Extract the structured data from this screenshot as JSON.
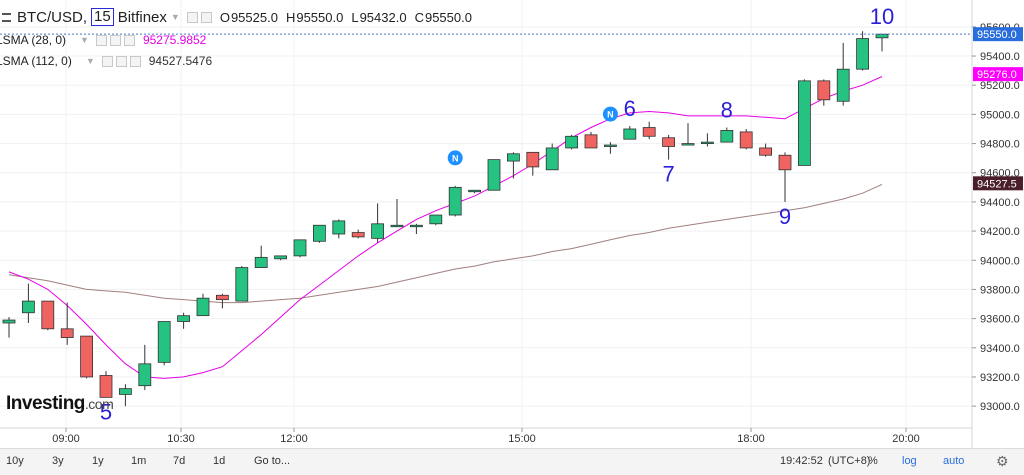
{
  "legend": {
    "symbol": "BTC/USD,",
    "interval": "15",
    "exchange": "Bitfinex",
    "ohlc": [
      {
        "key": "O",
        "value": "95525.0"
      },
      {
        "key": "H",
        "value": "95550.0"
      },
      {
        "key": "L",
        "value": "95432.0"
      },
      {
        "key": "C",
        "value": "95550.0"
      }
    ],
    "indicators": [
      {
        "name": "LSMA (28, 0)",
        "value": "95275.9852",
        "color": "#e600e6"
      },
      {
        "name": "LSMA (112, 0)",
        "value": "94527.5476",
        "color": "#333333"
      }
    ]
  },
  "logo": {
    "text": "Investing",
    "suffix": ".com"
  },
  "bottom_bar": {
    "ranges": [
      "10y",
      "3y",
      "1y",
      "1m",
      "7d",
      "1d"
    ],
    "goto": "Go to...",
    "clock": "19:42:52",
    "timezone": "(UTC+8)",
    "percent": "%",
    "log": "log",
    "auto": "auto"
  },
  "price_badges": {
    "last": "95550.0",
    "lsma28": "95276.0",
    "lsma112": "94527.5"
  },
  "colors": {
    "up": "#26c281",
    "down": "#ef6461",
    "lsma28": "#e600e6",
    "lsma112": "#a07f7f",
    "annotation": "#2a1fd6",
    "news": "#1e90ff"
  },
  "chart_data": {
    "type": "candlestick",
    "ylim": [
      92850,
      95750
    ],
    "y_ticks": [
      93000,
      93200,
      93400,
      93600,
      93800,
      94000,
      94200,
      94400,
      94600,
      94800,
      95000,
      95200,
      95400,
      95600
    ],
    "x_ticks": [
      "09:00",
      "10:30",
      "12:00",
      "15:00",
      "18:00",
      "20:00"
    ],
    "candles": [
      {
        "o": 93570,
        "h": 93610,
        "l": 93470,
        "c": 93590
      },
      {
        "o": 93640,
        "h": 93840,
        "l": 93570,
        "c": 93720
      },
      {
        "o": 93720,
        "h": 93720,
        "l": 93520,
        "c": 93530
      },
      {
        "o": 93530,
        "h": 93710,
        "l": 93420,
        "c": 93470
      },
      {
        "o": 93480,
        "h": 93480,
        "l": 93190,
        "c": 93200
      },
      {
        "o": 93210,
        "h": 93240,
        "l": 93060,
        "c": 93060
      },
      {
        "o": 93080,
        "h": 93150,
        "l": 93000,
        "c": 93120
      },
      {
        "o": 93140,
        "h": 93420,
        "l": 93110,
        "c": 93290
      },
      {
        "o": 93300,
        "h": 93560,
        "l": 93280,
        "c": 93580
      },
      {
        "o": 93580,
        "h": 93640,
        "l": 93530,
        "c": 93620
      },
      {
        "o": 93620,
        "h": 93770,
        "l": 93620,
        "c": 93740
      },
      {
        "o": 93760,
        "h": 93770,
        "l": 93670,
        "c": 93730
      },
      {
        "o": 93720,
        "h": 93960,
        "l": 93720,
        "c": 93950
      },
      {
        "o": 93950,
        "h": 94100,
        "l": 93950,
        "c": 94020
      },
      {
        "o": 94010,
        "h": 94030,
        "l": 94000,
        "c": 94030
      },
      {
        "o": 94030,
        "h": 94130,
        "l": 94020,
        "c": 94140
      },
      {
        "o": 94130,
        "h": 94240,
        "l": 94120,
        "c": 94240
      },
      {
        "o": 94180,
        "h": 94280,
        "l": 94150,
        "c": 94270
      },
      {
        "o": 94190,
        "h": 94210,
        "l": 94150,
        "c": 94160
      },
      {
        "o": 94150,
        "h": 94390,
        "l": 94120,
        "c": 94250
      },
      {
        "o": 94230,
        "h": 94420,
        "l": 94230,
        "c": 94240
      },
      {
        "o": 94240,
        "h": 94250,
        "l": 94180,
        "c": 94240
      },
      {
        "o": 94250,
        "h": 94290,
        "l": 94240,
        "c": 94310
      },
      {
        "o": 94310,
        "h": 94510,
        "l": 94300,
        "c": 94500
      },
      {
        "o": 94470,
        "h": 94480,
        "l": 94460,
        "c": 94480
      },
      {
        "o": 94480,
        "h": 94690,
        "l": 94480,
        "c": 94690
      },
      {
        "o": 94680,
        "h": 94740,
        "l": 94560,
        "c": 94730
      },
      {
        "o": 94740,
        "h": 94740,
        "l": 94580,
        "c": 94640
      },
      {
        "o": 94620,
        "h": 94800,
        "l": 94620,
        "c": 94770
      },
      {
        "o": 94770,
        "h": 94860,
        "l": 94760,
        "c": 94850
      },
      {
        "o": 94860,
        "h": 94880,
        "l": 94790,
        "c": 94770
      },
      {
        "o": 94780,
        "h": 94810,
        "l": 94730,
        "c": 94790
      },
      {
        "o": 94830,
        "h": 94920,
        "l": 94830,
        "c": 94900
      },
      {
        "o": 94910,
        "h": 94950,
        "l": 94830,
        "c": 94850
      },
      {
        "o": 94840,
        "h": 94860,
        "l": 94690,
        "c": 94780
      },
      {
        "o": 94790,
        "h": 94940,
        "l": 94790,
        "c": 94800
      },
      {
        "o": 94800,
        "h": 94870,
        "l": 94780,
        "c": 94810
      },
      {
        "o": 94810,
        "h": 94910,
        "l": 94810,
        "c": 94890
      },
      {
        "o": 94880,
        "h": 94900,
        "l": 94760,
        "c": 94770
      },
      {
        "o": 94770,
        "h": 94800,
        "l": 94710,
        "c": 94720
      },
      {
        "o": 94720,
        "h": 94740,
        "l": 94400,
        "c": 94620
      },
      {
        "o": 94650,
        "h": 95240,
        "l": 94650,
        "c": 95230
      },
      {
        "o": 95230,
        "h": 95240,
        "l": 95060,
        "c": 95100
      },
      {
        "o": 95090,
        "h": 95490,
        "l": 95060,
        "c": 95310
      },
      {
        "o": 95310,
        "h": 95570,
        "l": 95300,
        "c": 95520
      },
      {
        "o": 95525,
        "h": 95550,
        "l": 95432,
        "c": 95550
      }
    ],
    "lsma28": [
      93920,
      93870,
      93800,
      93690,
      93560,
      93420,
      93290,
      93200,
      93190,
      93200,
      93230,
      93270,
      93380,
      93490,
      93610,
      93730,
      93830,
      93930,
      94030,
      94120,
      94200,
      94280,
      94340,
      94390,
      94440,
      94510,
      94580,
      94660,
      94750,
      94840,
      94910,
      94970,
      95010,
      95020,
      95010,
      94990,
      94990,
      94990,
      94990,
      94980,
      94970,
      95040,
      95110,
      95160,
      95200,
      95260
    ],
    "lsma112": [
      93900,
      93880,
      93860,
      93830,
      93800,
      93790,
      93780,
      93760,
      93740,
      93730,
      93720,
      93710,
      93710,
      93720,
      93730,
      93740,
      93760,
      93780,
      93800,
      93820,
      93850,
      93880,
      93910,
      93940,
      93960,
      93990,
      94010,
      94030,
      94060,
      94080,
      94110,
      94140,
      94170,
      94190,
      94220,
      94240,
      94260,
      94280,
      94300,
      94320,
      94340,
      94360,
      94390,
      94420,
      94460,
      94520
    ],
    "annotations": [
      {
        "label": "5",
        "candle": 5
      },
      {
        "label": "6",
        "candle": 32
      },
      {
        "label": "7",
        "candle": 34
      },
      {
        "label": "8",
        "candle": 37
      },
      {
        "label": "9",
        "candle": 40
      },
      {
        "label": "10",
        "candle": 45
      }
    ],
    "news_markers": [
      {
        "label": "N",
        "candle": 23
      },
      {
        "label": "N",
        "candle": 31
      }
    ]
  }
}
